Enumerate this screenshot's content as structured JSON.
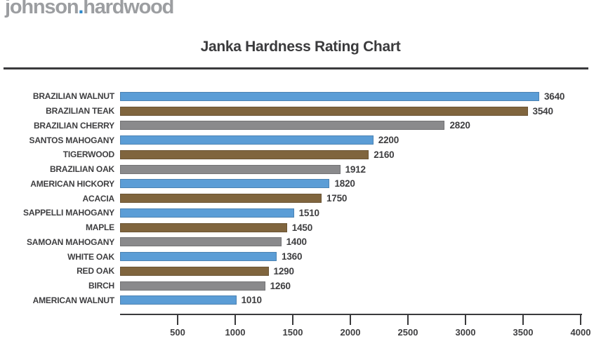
{
  "logo": {
    "word1": "johnson",
    "dot": ".",
    "word2": "hardwood",
    "registered": "®"
  },
  "title": "Janka Hardness Rating Chart",
  "colors": {
    "blue": "#5b9dd6",
    "brown": "#80653e",
    "gray": "#8a8a8c",
    "text": "#3e3e40",
    "axis": "#3a3a3c",
    "logo_gray": "#9c9ea1",
    "logo_dot_blue": "#2e89cb"
  },
  "chart_data": {
    "type": "bar",
    "orientation": "horizontal",
    "title": "Janka Hardness Rating Chart",
    "categories": [
      "BRAZILIAN WALNUT",
      "BRAZILIAN TEAK",
      "BRAZILIAN CHERRY",
      "SANTOS MAHOGANY",
      "TIGERWOOD",
      "BRAZILIAN OAK",
      "AMERICAN HICKORY",
      "ACACIA",
      "SAPPELLI MAHOGANY",
      "MAPLE",
      "SAMOAN MAHOGANY",
      "WHITE OAK",
      "RED OAK",
      "BIRCH",
      "AMERICAN WALNUT"
    ],
    "values": [
      3640,
      3540,
      2820,
      2200,
      2160,
      1912,
      1820,
      1750,
      1510,
      1450,
      1400,
      1360,
      1290,
      1260,
      1010
    ],
    "bar_colors": [
      "blue",
      "brown",
      "gray",
      "blue",
      "brown",
      "gray",
      "blue",
      "brown",
      "blue",
      "brown",
      "gray",
      "blue",
      "brown",
      "gray",
      "blue"
    ],
    "xlabel": "",
    "ylabel": "",
    "xlim": [
      0,
      4000
    ],
    "x_ticks": [
      500,
      1000,
      1500,
      2000,
      2500,
      3000,
      3500,
      4000
    ],
    "grid": false,
    "legend": false,
    "value_labels": "end-of-bar"
  }
}
